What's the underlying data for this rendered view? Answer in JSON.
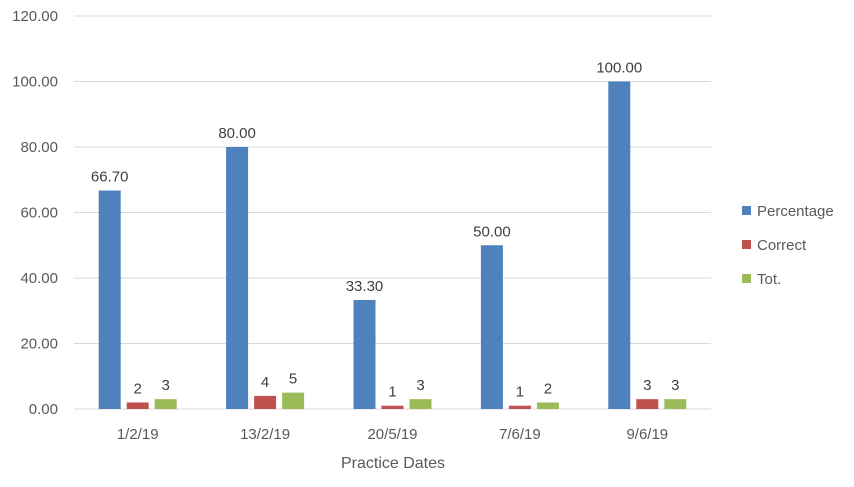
{
  "chart_data": {
    "type": "bar",
    "categories": [
      "1/2/19",
      "13/2/19",
      "20/5/19",
      "7/6/19",
      "9/6/19"
    ],
    "series": [
      {
        "name": "Percentage",
        "color": "#4F81BD",
        "values": [
          66.7,
          80.0,
          33.3,
          50.0,
          100.0
        ],
        "labels": [
          "66.70",
          "80.00",
          "33.30",
          "50.00",
          "100.00"
        ]
      },
      {
        "name": "Correct",
        "color": "#C0504D",
        "values": [
          2,
          4,
          1,
          1,
          3
        ],
        "labels": [
          "2",
          "4",
          "1",
          "1",
          "3"
        ]
      },
      {
        "name": "Tot.",
        "color": "#9BBB59",
        "values": [
          3,
          5,
          3,
          2,
          3
        ],
        "labels": [
          "3",
          "5",
          "3",
          "2",
          "3"
        ]
      }
    ],
    "xlabel": "Practice Dates",
    "ylabel": "",
    "ylim": [
      0,
      120
    ],
    "yticks": [
      "0.00",
      "20.00",
      "40.00",
      "60.00",
      "80.00",
      "100.00",
      "120.00"
    ],
    "grid": true,
    "legend_position": "right"
  }
}
